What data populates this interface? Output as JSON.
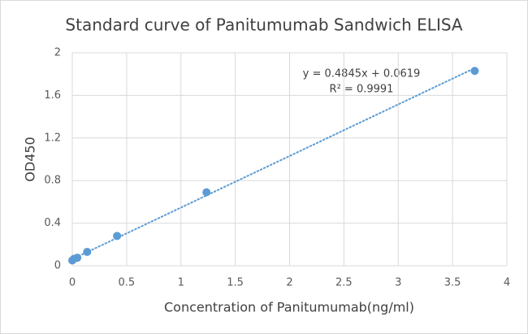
{
  "chart_data": {
    "type": "scatter",
    "title": "Standard curve of Panitumumab Sandwich ELISA",
    "x_label": "Concentration of Panitumumab(ng/ml)",
    "y_label": "OD450",
    "series": [
      {
        "name": "OD450",
        "color": "#5b9bd5",
        "x": [
          0,
          0.015,
          0.046,
          0.137,
          0.412,
          1.235,
          3.704
        ],
        "values": [
          0.05,
          0.065,
          0.075,
          0.13,
          0.28,
          0.69,
          1.83
        ]
      }
    ],
    "trendline": {
      "slope": 0.4845,
      "intercept": 0.0619,
      "equation": "y = 0.4845x + 0.0619",
      "r_squared": "R² = 0.9991"
    },
    "xlim": [
      0,
      4
    ],
    "xticks": [
      0,
      0.5,
      1,
      1.5,
      2,
      2.5,
      3,
      3.5,
      4
    ],
    "ylim": [
      0,
      2
    ],
    "yticks": [
      0,
      0.4,
      0.8,
      1.2,
      1.6,
      2
    ],
    "grid": true
  }
}
